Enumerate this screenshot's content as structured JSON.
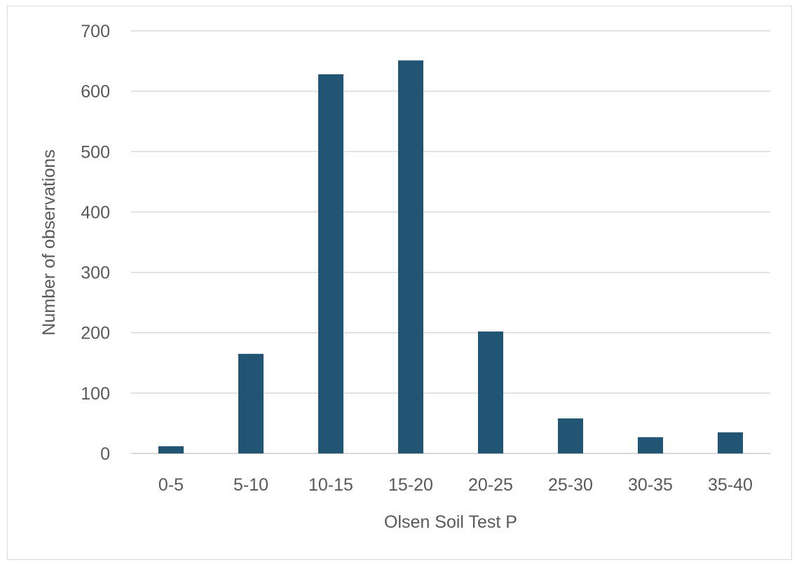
{
  "chart_data": {
    "type": "bar",
    "categories": [
      "0-5",
      "5-10",
      "10-15",
      "15-20",
      "20-25",
      "25-30",
      "30-35",
      "35-40"
    ],
    "values": [
      12,
      165,
      628,
      651,
      202,
      58,
      27,
      35
    ],
    "xlabel": "Olsen Soil Test P",
    "ylabel": "Number of observations",
    "ylim": [
      0,
      700
    ],
    "yticks": [
      0,
      100,
      200,
      300,
      400,
      500,
      600,
      700
    ],
    "grid": true,
    "legend": "none",
    "bar_color": "#215573",
    "grid_color": "#d9d9d9",
    "text_color": "#595959"
  }
}
